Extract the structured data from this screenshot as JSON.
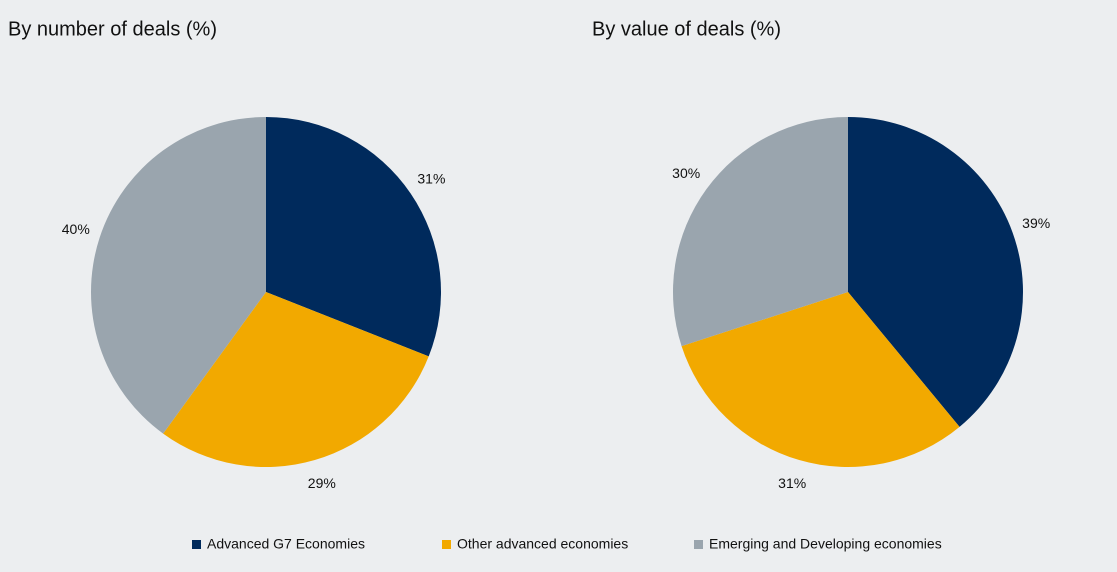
{
  "chart_data": [
    {
      "type": "pie",
      "title": "By number of deals (%)",
      "values": [
        31,
        29,
        40
      ],
      "value_labels": [
        "31%",
        "29%",
        "40%"
      ]
    },
    {
      "type": "pie",
      "title": "By value of deals (%)",
      "values": [
        39,
        31,
        30
      ],
      "value_labels": [
        "39%",
        "31%",
        "30%"
      ]
    }
  ],
  "legend": {
    "labels": [
      "Advanced G7 Economies",
      "Other advanced economies",
      "Emerging and Developing economies"
    ],
    "colors": [
      "#002a5c",
      "#f2a900",
      "#9aa5ae"
    ]
  }
}
